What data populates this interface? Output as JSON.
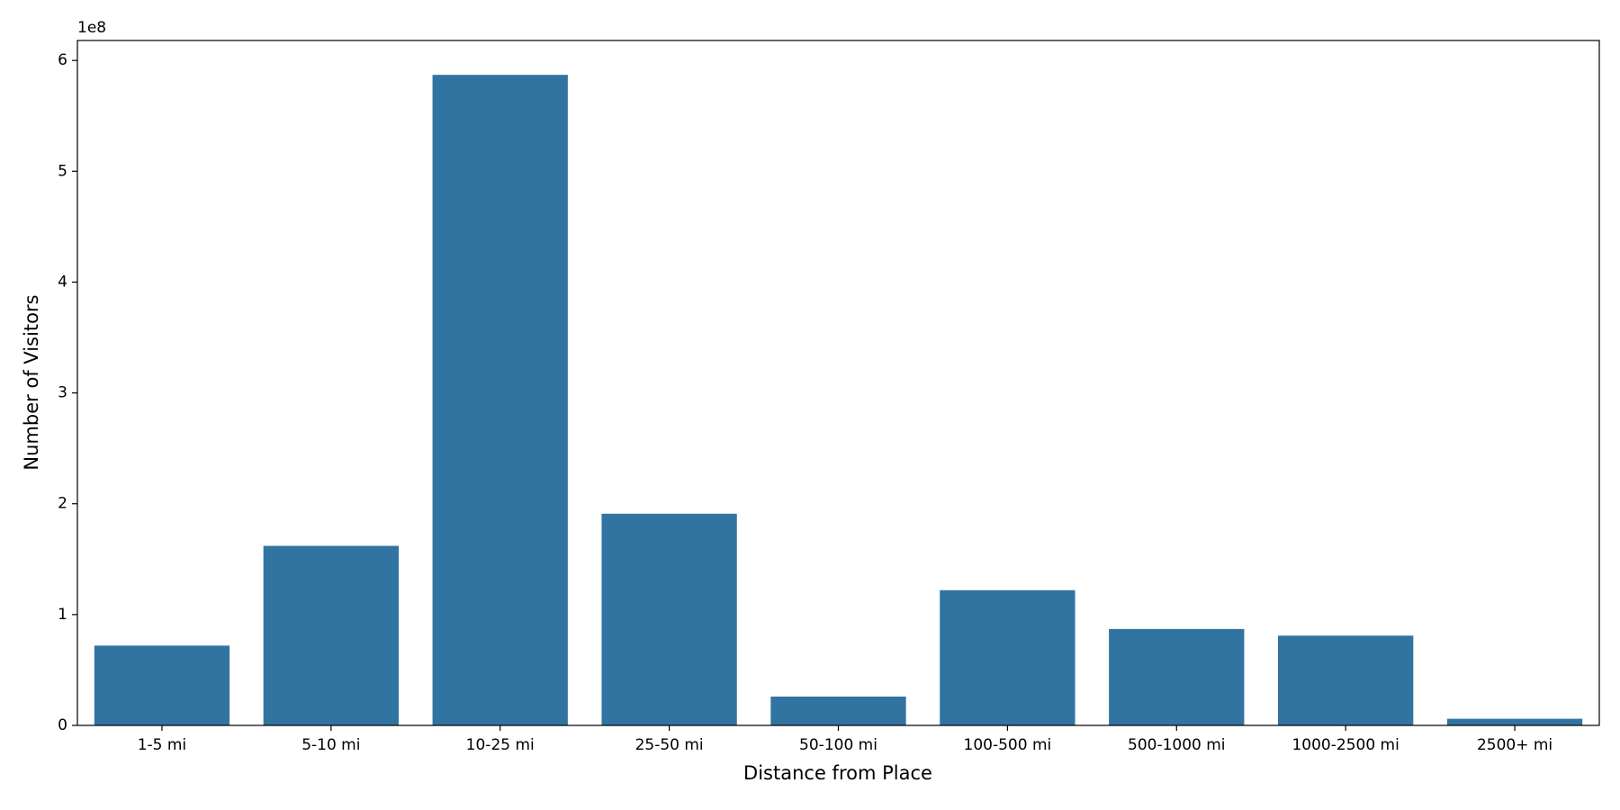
{
  "chart_data": {
    "type": "bar",
    "x_label": "Distance from Place",
    "y_label": "Number of Visitors",
    "y_offset_label": "1e8",
    "categories": [
      "1-5 mi",
      "5-10 mi",
      "10-25 mi",
      "25-50 mi",
      "50-100 mi",
      "100-500 mi",
      "500-1000 mi",
      "1000-2500 mi",
      "2500+ mi"
    ],
    "values": [
      0.72,
      1.62,
      5.87,
      1.91,
      0.26,
      1.22,
      0.87,
      0.81,
      0.06
    ],
    "color": "#3274a1",
    "ylim": [
      0,
      6.18
    ],
    "yticks": [
      0,
      1,
      2,
      3,
      4,
      5,
      6
    ]
  }
}
